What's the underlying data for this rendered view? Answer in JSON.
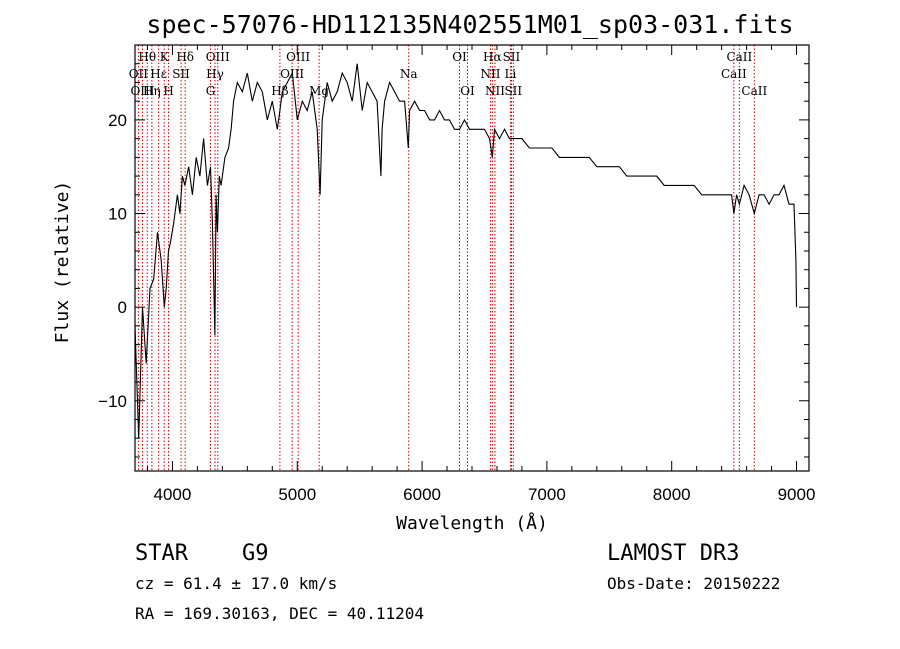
{
  "chart_data": {
    "type": "line",
    "title": "spec-57076-HD112135N402551M01_sp03-031.fits",
    "xlabel": "Wavelength (Å)",
    "ylabel": "Flux (relative)",
    "xlim": [
      3700,
      9100
    ],
    "ylim": [
      -17.5,
      28
    ],
    "x_ticks": [
      4000,
      5000,
      6000,
      7000,
      8000,
      9000
    ],
    "y_ticks": [
      -10,
      0,
      10,
      20
    ],
    "x_tick_labels": [
      "4000",
      "5000",
      "6000",
      "7000",
      "8000",
      "9000"
    ],
    "y_tick_labels": [
      "−10",
      "0",
      "10",
      "20"
    ],
    "series": [
      {
        "name": "spectrum",
        "x": [
          3700,
          3730,
          3760,
          3790,
          3820,
          3850,
          3880,
          3910,
          3935,
          3950,
          3968,
          3985,
          4010,
          4040,
          4060,
          4080,
          4100,
          4130,
          4160,
          4190,
          4220,
          4250,
          4280,
          4305,
          4320,
          4340,
          4350,
          4360,
          4375,
          4390,
          4420,
          4450,
          4470,
          4490,
          4520,
          4560,
          4600,
          4640,
          4680,
          4720,
          4760,
          4800,
          4840,
          4861,
          4880,
          4920,
          4960,
          5000,
          5040,
          5080,
          5120,
          5160,
          5183,
          5200,
          5240,
          5280,
          5320,
          5360,
          5400,
          5440,
          5480,
          5520,
          5560,
          5600,
          5640,
          5670,
          5680,
          5700,
          5740,
          5780,
          5820,
          5860,
          5890,
          5900,
          5940,
          5980,
          6020,
          6060,
          6100,
          6140,
          6180,
          6220,
          6260,
          6300,
          6340,
          6380,
          6420,
          6460,
          6500,
          6540,
          6563,
          6580,
          6620,
          6660,
          6700,
          6740,
          6800,
          6860,
          6920,
          6980,
          7040,
          7100,
          7160,
          7220,
          7280,
          7340,
          7400,
          7460,
          7520,
          7580,
          7640,
          7700,
          7760,
          7820,
          7880,
          7940,
          8000,
          8060,
          8120,
          8180,
          8240,
          8300,
          8360,
          8420,
          8480,
          8498,
          8520,
          8542,
          8580,
          8620,
          8662,
          8700,
          8740,
          8780,
          8820,
          8860,
          8900,
          8940,
          8980,
          8995,
          9000
        ],
        "values": [
          -2,
          -14,
          0,
          -6,
          2,
          3,
          8,
          5,
          0,
          2,
          6,
          7,
          9,
          12,
          10,
          14,
          13,
          15,
          12,
          16,
          14,
          18,
          13,
          15,
          9,
          -3,
          12,
          8,
          14,
          13,
          16,
          17,
          19,
          22,
          24,
          23,
          25,
          22,
          24,
          23,
          20,
          22,
          19,
          21,
          23,
          24,
          25,
          20,
          22,
          21,
          23,
          19,
          12,
          20,
          24,
          22,
          23,
          25,
          24,
          22,
          26,
          21,
          24,
          23,
          22,
          14,
          19,
          22,
          24,
          23,
          22,
          22,
          17,
          21,
          22,
          21,
          21,
          20,
          20,
          21,
          20,
          20,
          19,
          19,
          20,
          19,
          19,
          19,
          19,
          18,
          16,
          19,
          18,
          19,
          18,
          18,
          18,
          17,
          17,
          17,
          17,
          16,
          16,
          16,
          16,
          16,
          15,
          15,
          15,
          15,
          14,
          14,
          14,
          14,
          14,
          13,
          13,
          13,
          13,
          13,
          12,
          12,
          12,
          12,
          12,
          10,
          12,
          11,
          13,
          12,
          10,
          12,
          12,
          11,
          12,
          12,
          13,
          11,
          11,
          5,
          0
        ]
      }
    ],
    "lines": [
      {
        "label": "Hθ",
        "x": 3798,
        "row": 1
      },
      {
        "label": "OII",
        "x": 3727,
        "row": 2
      },
      {
        "label": "OIII",
        "x": 3760,
        "row": 3
      },
      {
        "label": "K",
        "x": 3934,
        "row": 1
      },
      {
        "label": "Hε",
        "x": 3889,
        "row": 2
      },
      {
        "label": "Hη",
        "x": 3835,
        "row": 3
      },
      {
        "label": "SII",
        "x": 4069,
        "row": 2
      },
      {
        "label": "H",
        "x": 3969,
        "row": 3
      },
      {
        "label": "Hδ",
        "x": 4102,
        "row": 1
      },
      {
        "label": "OIII",
        "x": 4363,
        "row": 1
      },
      {
        "label": "Hγ",
        "x": 4341,
        "row": 2
      },
      {
        "label": "G",
        "x": 4305,
        "row": 3
      },
      {
        "label": "OIII",
        "x": 5007,
        "row": 1
      },
      {
        "label": "OIII",
        "x": 4959,
        "row": 2
      },
      {
        "label": "Hβ",
        "x": 4861,
        "row": 3
      },
      {
        "label": "Mg",
        "x": 5175,
        "row": 3
      },
      {
        "label": "Na",
        "x": 5893,
        "row": 2
      },
      {
        "label": "OI",
        "x": 6300,
        "row": 1
      },
      {
        "label": "OI",
        "x": 6364,
        "row": 3
      },
      {
        "label": "Hα",
        "x": 6563,
        "row": 1
      },
      {
        "label": "NII",
        "x": 6548,
        "row": 2
      },
      {
        "label": "NII",
        "x": 6584,
        "row": 3
      },
      {
        "label": "SII",
        "x": 6716,
        "row": 1
      },
      {
        "label": "Li",
        "x": 6708,
        "row": 2
      },
      {
        "label": "SII",
        "x": 6731,
        "row": 3
      },
      {
        "label": "CaII",
        "x": 8542,
        "row": 1
      },
      {
        "label": "CaII",
        "x": 8498,
        "row": 2
      },
      {
        "label": "CaII",
        "x": 8662,
        "row": 3
      }
    ],
    "line_color": "#cc0000",
    "spectrum_color": "#000000"
  },
  "info": {
    "class_label": "STAR",
    "subclass": "G9",
    "survey": "LAMOST DR3",
    "cz": "cz = 61.4 ± 17.0 km/s",
    "obs_date": "Obs-Date: 20150222",
    "coords": "RA = 169.30163, DEC =  40.11204"
  }
}
